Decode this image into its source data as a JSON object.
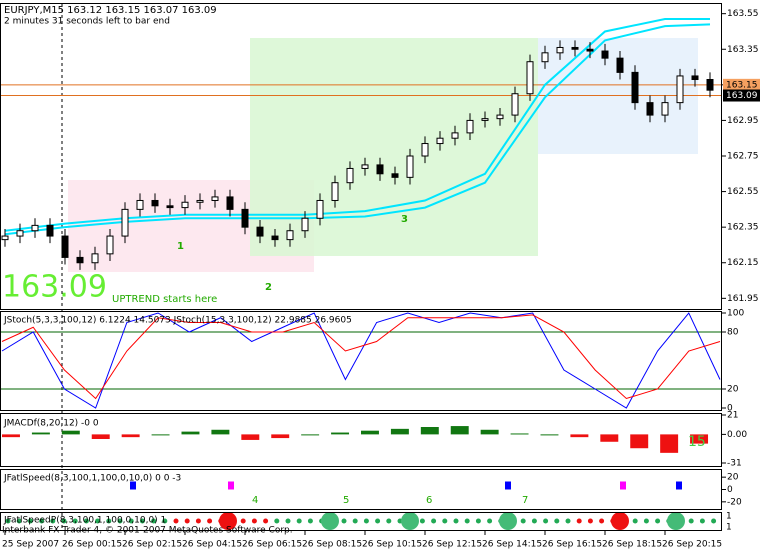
{
  "chart_data": {
    "type": "candlestick",
    "title": "EURJPY,M15  163.12 163.15 163.07 163.09",
    "subtitle": "2 minutes 31 seconds left to bar end",
    "big_price": "163.09",
    "annotations": [
      "UPTREND starts here",
      "1",
      "2",
      "3"
    ],
    "footer": "Interbank FX Trader 4, © 2001-2007 MetaQuotes Software Corp.",
    "categories": [
      "25 Sep 2007",
      null,
      null,
      null,
      "26 Sep 00:15",
      null,
      null,
      null,
      "26 Sep 02:15",
      null,
      null,
      null,
      "26 Sep 04:15",
      null,
      null,
      null,
      "26 Sep 06:15",
      null,
      null,
      null,
      "26 Sep 08:15",
      null,
      null,
      null,
      "26 Sep 10:15",
      null,
      null,
      null,
      "26 Sep 12:15",
      null,
      null,
      null,
      "26 Sep 14:15",
      null,
      null,
      null,
      "26 Sep 16:15",
      null,
      null,
      null,
      "26 Sep 18:15",
      null,
      null,
      null,
      "26 Sep 20:15",
      null,
      null,
      null
    ],
    "open": [
      162.28,
      162.3,
      162.33,
      162.36,
      162.3,
      162.18,
      162.15,
      162.2,
      162.3,
      162.45,
      162.5,
      162.47,
      162.46,
      162.49,
      162.5,
      162.52,
      162.45,
      162.35,
      162.3,
      162.28,
      162.33,
      162.4,
      162.5,
      162.6,
      162.68,
      162.7,
      162.65,
      162.63,
      162.75,
      162.82,
      162.85,
      162.88,
      162.95,
      162.96,
      162.98,
      163.1,
      163.28,
      163.33,
      163.36,
      163.35,
      163.34,
      163.3,
      163.22,
      163.05,
      162.98,
      163.05,
      163.2,
      163.18
    ],
    "high": [
      162.34,
      162.37,
      162.4,
      162.4,
      162.34,
      162.22,
      162.24,
      162.34,
      162.49,
      162.54,
      162.54,
      162.51,
      162.53,
      162.54,
      162.56,
      162.56,
      162.49,
      162.39,
      162.34,
      162.37,
      162.44,
      162.54,
      162.64,
      162.72,
      162.74,
      162.74,
      162.69,
      162.79,
      162.86,
      162.89,
      162.92,
      162.99,
      163.0,
      163.02,
      163.14,
      163.32,
      163.37,
      163.4,
      163.4,
      163.39,
      163.38,
      163.34,
      163.26,
      163.09,
      163.09,
      163.24,
      163.24,
      163.22
    ],
    "low": [
      162.24,
      162.26,
      162.29,
      162.26,
      162.14,
      162.11,
      162.11,
      162.16,
      162.26,
      162.41,
      162.43,
      162.42,
      162.42,
      162.45,
      162.46,
      162.41,
      162.31,
      162.26,
      162.24,
      162.24,
      162.29,
      162.36,
      162.46,
      162.56,
      162.64,
      162.61,
      162.59,
      162.59,
      162.71,
      162.78,
      162.81,
      162.84,
      162.91,
      162.92,
      162.94,
      163.06,
      163.24,
      163.29,
      163.31,
      163.3,
      163.26,
      163.18,
      163.01,
      162.94,
      162.94,
      163.01,
      163.14,
      163.08
    ],
    "close": [
      162.3,
      162.33,
      162.36,
      162.3,
      162.18,
      162.15,
      162.2,
      162.3,
      162.45,
      162.5,
      162.47,
      162.46,
      162.49,
      162.5,
      162.52,
      162.45,
      162.35,
      162.3,
      162.28,
      162.33,
      162.4,
      162.5,
      162.6,
      162.68,
      162.7,
      162.65,
      162.63,
      162.75,
      162.82,
      162.85,
      162.88,
      162.95,
      162.96,
      162.98,
      163.1,
      163.28,
      163.33,
      163.36,
      163.35,
      163.34,
      163.3,
      163.22,
      163.05,
      162.98,
      163.05,
      163.2,
      163.18,
      163.12
    ],
    "overlays": [
      {
        "color": "#00e5ff",
        "x": [
          0,
          4,
          8,
          12,
          16,
          20,
          24,
          28,
          32,
          36,
          40,
          44,
          47
        ],
        "values": [
          162.33,
          162.37,
          162.4,
          162.42,
          162.42,
          162.42,
          162.44,
          162.5,
          162.65,
          163.15,
          163.45,
          163.52,
          163.52
        ]
      },
      {
        "color": "#00e5ff",
        "x": [
          0,
          4,
          8,
          12,
          16,
          20,
          24,
          28,
          32,
          36,
          40,
          44,
          47
        ],
        "values": [
          162.31,
          162.35,
          162.38,
          162.4,
          162.4,
          162.4,
          162.41,
          162.46,
          162.6,
          163.08,
          163.4,
          163.48,
          163.49
        ]
      }
    ],
    "price_lines": [
      163.15,
      163.09
    ],
    "ylim": [
      161.89,
      163.61
    ],
    "yticks": [
      163.55,
      163.35,
      163.15,
      162.95,
      162.75,
      162.55,
      162.35,
      162.15,
      161.95
    ],
    "stoch": {
      "title": "JStoch(5,3,3,100,12) 6.1224 14.5073  JStoch(15,3,3,100,12) 22.9885 26.9605",
      "ylim": [
        0,
        100
      ],
      "yticks": [
        100,
        80,
        20,
        0
      ],
      "series": [
        {
          "color": "#0000ff",
          "values": [
            60,
            80,
            20,
            0,
            90,
            100,
            80,
            95,
            70,
            85,
            100,
            30,
            90,
            100,
            90,
            100,
            95,
            100,
            40,
            20,
            0,
            60,
            100,
            30
          ]
        },
        {
          "color": "#ff0000",
          "values": [
            70,
            85,
            40,
            10,
            60,
            95,
            90,
            90,
            80,
            80,
            90,
            60,
            70,
            95,
            95,
            95,
            95,
            98,
            80,
            40,
            10,
            20,
            60,
            70
          ]
        }
      ]
    },
    "macd": {
      "title": "JMACDf(8,20,12) -0 0",
      "annotation": "15",
      "ylim": [
        -31,
        21
      ],
      "yticks": [
        21,
        {
          "value": 0,
          "label": "0.00"
        },
        -31
      ],
      "values": [
        -3,
        2,
        4,
        -5,
        -3,
        0,
        3,
        5,
        -6,
        -4,
        0,
        2,
        4,
        6,
        8,
        9,
        5,
        1,
        0,
        -3,
        -8,
        -15,
        -20,
        -10
      ]
    },
    "fatl": {
      "title": "JFatlSpeed(8,3,100,1,100,0,10,0) 0 0 -3",
      "annotations": [
        "4",
        "5",
        "6",
        "7"
      ],
      "ylim": [
        -30,
        30
      ],
      "yticks": [
        20,
        0,
        -20
      ]
    },
    "fatlp": {
      "title": "JFatlSpeedP(8,3,100,1,100,0,10,0) 1",
      "right_labels": [
        1,
        1
      ]
    }
  }
}
